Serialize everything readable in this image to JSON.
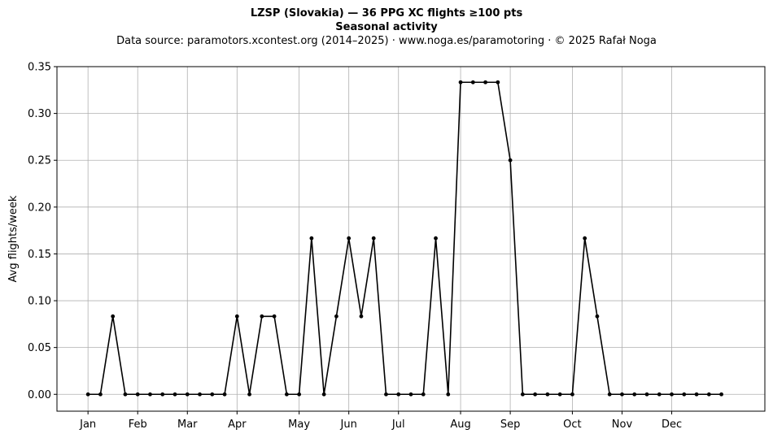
{
  "chart_data": {
    "type": "line",
    "title": "LZSP (Slovakia)  —  36 PPG XC flights ≥100 pts",
    "subtitle": "Seasonal activity",
    "source_line": "Data source: paramotors.xcontest.org (2014–2025)  ·  www.noga.es/paramotoring  ·  © 2025 Rafał Noga",
    "xlabel": "",
    "ylabel": "Avg flights/week",
    "ylim": [
      -0.018,
      0.35
    ],
    "xlim": [
      -2.5,
      54.5
    ],
    "grid": true,
    "yticks": [
      0.0,
      0.05,
      0.1,
      0.15,
      0.2,
      0.25,
      0.3,
      0.35
    ],
    "ytick_labels": [
      "0.00",
      "0.05",
      "0.10",
      "0.15",
      "0.20",
      "0.25",
      "0.30",
      "0.35"
    ],
    "xticks": [
      0,
      4,
      8,
      12,
      17,
      21,
      25,
      30,
      34,
      39,
      43,
      47
    ],
    "xtick_labels": [
      "Jan",
      "Feb",
      "Mar",
      "Apr",
      "May",
      "Jun",
      "Jul",
      "Aug",
      "Sep",
      "Oct",
      "Nov",
      "Dec"
    ],
    "line_color": "#000000",
    "series": [
      {
        "x": [
          0,
          1,
          2,
          3,
          4,
          5,
          6,
          7,
          8,
          9,
          10,
          11,
          12,
          13,
          14,
          15,
          16,
          17,
          18,
          19,
          20,
          21,
          22,
          23,
          24,
          25,
          26,
          27,
          28,
          29,
          30,
          31,
          32,
          33,
          34,
          35,
          36,
          37,
          38,
          39,
          40,
          41,
          42,
          43,
          44,
          45,
          46,
          47,
          48,
          49,
          50,
          51
        ],
        "values": [
          0,
          0,
          0.0833,
          0,
          0,
          0,
          0,
          0,
          0,
          0,
          0,
          0,
          0.0833,
          0,
          0.0833,
          0.0833,
          0,
          0,
          0.1667,
          0,
          0.0833,
          0.1667,
          0.0833,
          0.1667,
          0,
          0,
          0,
          0,
          0.1667,
          0,
          0.3333,
          0.3333,
          0.3333,
          0.3333,
          0.25,
          0,
          0,
          0,
          0,
          0,
          0.1667,
          0.0833,
          0,
          0,
          0,
          0,
          0,
          0,
          0,
          0,
          0,
          0
        ]
      }
    ]
  }
}
